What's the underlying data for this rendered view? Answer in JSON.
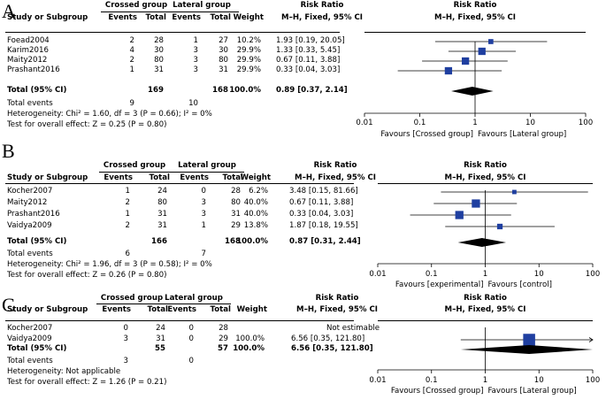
{
  "header": {
    "study": "Study or Subgroup",
    "events": "Events",
    "total": "Total",
    "weight": "Weight",
    "rr_title": "Risk Ratio",
    "rr_method": "M–H, Fixed, 95% CI"
  },
  "ticks": [
    "0.01",
    "0.1",
    "1",
    "10",
    "100"
  ],
  "chart_data": [
    {
      "type": "forest",
      "panel": "A",
      "group1": "Crossed group",
      "group2": "Lateral group",
      "studies": [
        {
          "name": "Foead2004",
          "e1": 2,
          "n1": 28,
          "e2": 1,
          "n2": 27,
          "weight": "10.2%",
          "ci_text": "1.93 [0.19, 20.05]",
          "rr": 1.93,
          "lo": 0.19,
          "hi": 20.05,
          "w": 10.2
        },
        {
          "name": "Karim2016",
          "e1": 4,
          "n1": 30,
          "e2": 3,
          "n2": 30,
          "weight": "29.9%",
          "ci_text": "1.33 [0.33, 5.45]",
          "rr": 1.33,
          "lo": 0.33,
          "hi": 5.45,
          "w": 29.9
        },
        {
          "name": "Maity2012",
          "e1": 2,
          "n1": 80,
          "e2": 3,
          "n2": 80,
          "weight": "29.9%",
          "ci_text": "0.67 [0.11, 3.88]",
          "rr": 0.67,
          "lo": 0.11,
          "hi": 3.88,
          "w": 29.9
        },
        {
          "name": "Prashant2016",
          "e1": 1,
          "n1": 31,
          "e2": 3,
          "n2": 31,
          "weight": "29.9%",
          "ci_text": "0.33 [0.04, 3.03]",
          "rr": 0.33,
          "lo": 0.04,
          "hi": 3.03,
          "w": 29.9
        }
      ],
      "total": {
        "label": "Total (95% CI)",
        "n1": 169,
        "n2": 168,
        "weight": "100.0%",
        "ci_text": "0.89 [0.37, 2.14]",
        "rr": 0.89,
        "lo": 0.37,
        "hi": 2.14
      },
      "total_events": {
        "label": "Total events",
        "e1": 9,
        "e2": 10
      },
      "heterogeneity": "Heterogeneity: Chi² = 1.60, df = 3 (P = 0.66); I² = 0%",
      "overall": "Test for overall effect: Z = 0.25 (P = 0.80)",
      "favours_left": "Favours [Crossed group]",
      "favours_right": "Favours [Lateral group]",
      "xscale": "log",
      "xlim": [
        0.01,
        100
      ]
    },
    {
      "type": "forest",
      "panel": "B",
      "group1": "Crossed group",
      "group2": "Lateral group",
      "studies": [
        {
          "name": "Kocher2007",
          "e1": 1,
          "n1": 24,
          "e2": 0,
          "n2": 28,
          "weight": "6.2%",
          "ci_text": "3.48 [0.15, 81.66]",
          "rr": 3.48,
          "lo": 0.15,
          "hi": 81.66,
          "w": 6.2
        },
        {
          "name": "Maity2012",
          "e1": 2,
          "n1": 80,
          "e2": 3,
          "n2": 80,
          "weight": "40.0%",
          "ci_text": "0.67 [0.11, 3.88]",
          "rr": 0.67,
          "lo": 0.11,
          "hi": 3.88,
          "w": 40.0
        },
        {
          "name": "Prashant2016",
          "e1": 1,
          "n1": 31,
          "e2": 3,
          "n2": 31,
          "weight": "40.0%",
          "ci_text": "0.33 [0.04, 3.03]",
          "rr": 0.33,
          "lo": 0.04,
          "hi": 3.03,
          "w": 40.0
        },
        {
          "name": "Vaidya2009",
          "e1": 2,
          "n1": 31,
          "e2": 1,
          "n2": 29,
          "weight": "13.8%",
          "ci_text": "1.87 [0.18, 19.55]",
          "rr": 1.87,
          "lo": 0.18,
          "hi": 19.55,
          "w": 13.8
        }
      ],
      "total": {
        "label": "Total (95% CI)",
        "n1": 166,
        "n2": 168,
        "weight": "100.0%",
        "ci_text": "0.87 [0.31, 2.44]",
        "rr": 0.87,
        "lo": 0.31,
        "hi": 2.44
      },
      "total_events": {
        "label": "Total events",
        "e1": 6,
        "e2": 7
      },
      "heterogeneity": "Heterogeneity: Chi² = 1.96, df = 3 (P = 0.58); I² = 0%",
      "overall": "Test for overall effect: Z = 0.26 (P = 0.80)",
      "favours_left": "Favours [experimental]",
      "favours_right": "Favours [control]",
      "xscale": "log",
      "xlim": [
        0.01,
        100
      ]
    },
    {
      "type": "forest",
      "panel": "C",
      "group1": "Crossed group",
      "group2": "Lateral group",
      "studies": [
        {
          "name": "Kocher2007",
          "e1": 0,
          "n1": 24,
          "e2": 0,
          "n2": 28,
          "weight": "",
          "ci_text": "Not estimable",
          "rr": null,
          "lo": null,
          "hi": null,
          "w": 0
        },
        {
          "name": "Vaidya2009",
          "e1": 3,
          "n1": 31,
          "e2": 0,
          "n2": 29,
          "weight": "100.0%",
          "ci_text": "6.56 [0.35, 121.80]",
          "rr": 6.56,
          "lo": 0.35,
          "hi": 121.8,
          "w": 100.0
        }
      ],
      "total": {
        "label": "Total (95% CI)",
        "n1": 55,
        "n2": 57,
        "weight": "100.0%",
        "ci_text": "6.56 [0.35, 121.80]",
        "rr": 6.56,
        "lo": 0.35,
        "hi": 121.8
      },
      "total_events": {
        "label": "Total events",
        "e1": 3,
        "e2": 0
      },
      "heterogeneity": "Heterogeneity: Not applicable",
      "overall": "Test for overall effect: Z = 1.26 (P = 0.21)",
      "favours_left": "Favours [Crossed group]",
      "favours_right": "Favours [Lateral group]",
      "xscale": "log",
      "xlim": [
        0.01,
        100
      ]
    }
  ]
}
